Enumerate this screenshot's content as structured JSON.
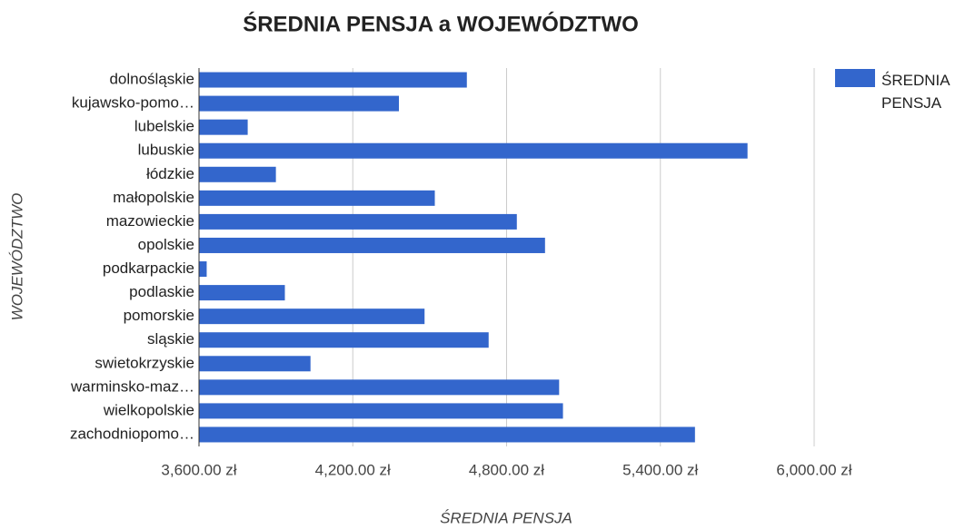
{
  "chart_data": {
    "type": "bar",
    "orientation": "horizontal",
    "title": "ŚREDNIA PENSJA a WOJEWÓDZTWO",
    "x_label": "ŚREDNIA PENSJA",
    "y_label": "WOJEWÓDZTWO",
    "categories": [
      "dolnośląskie",
      "kujawsko-pomo…",
      "lubelskie",
      "lubuskie",
      "łódzkie",
      "małopolskie",
      "mazowieckie",
      "opolskie",
      "podkarpackie",
      "podlaskie",
      "pomorskie",
      "sląskie",
      "swietokrzyskie",
      "warminsko-maz…",
      "wielkopolskie",
      "zachodniopomo…"
    ],
    "series": [
      {
        "name": "ŚREDNIA PENSJA",
        "color": "#3366cc",
        "values": [
          4645,
          4380,
          3790,
          5740,
          3900,
          4520,
          4840,
          4950,
          3630,
          3935,
          4480,
          4730,
          4035,
          5005,
          5020,
          5535
        ]
      }
    ],
    "xlim": [
      3600,
      6000
    ],
    "xticks": [
      {
        "value": 3600,
        "label": "3,600.00 zł"
      },
      {
        "value": 4200,
        "label": "4,200.00 zł"
      },
      {
        "value": 4800,
        "label": "4,800.00 zł"
      },
      {
        "value": 5400,
        "label": "5,400.00 zł"
      },
      {
        "value": 6000,
        "label": "6,000.00 zł"
      }
    ],
    "grid": true,
    "legend": "right"
  }
}
